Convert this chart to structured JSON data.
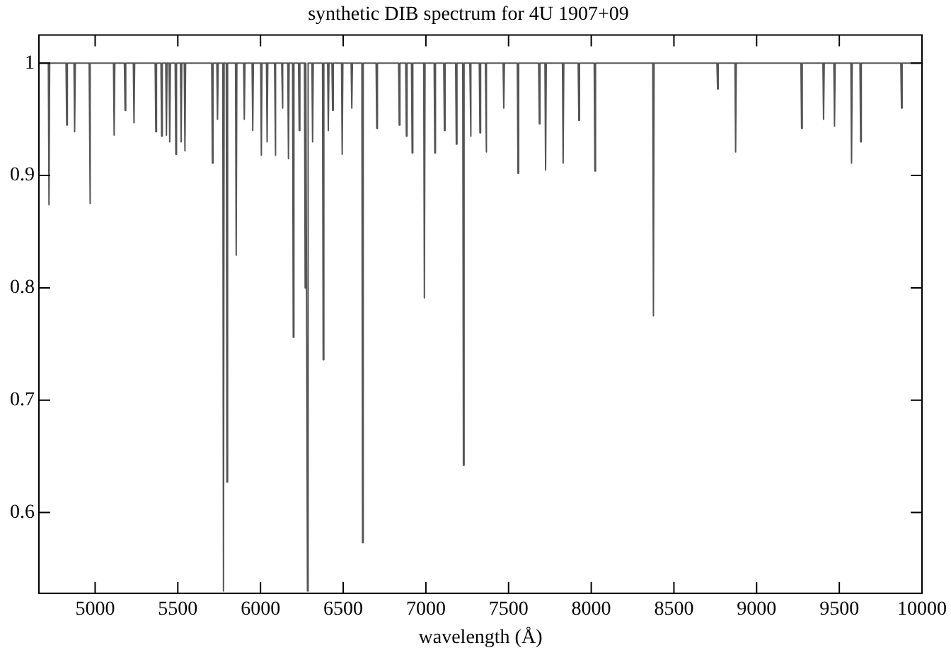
{
  "chart_data": {
    "type": "line",
    "title": "synthetic DIB spectrum for 4U 1907+09",
    "xlabel": "wavelength (Å)",
    "marker": "none",
    "line_style": "solid",
    "xlim": [
      4660,
      10000
    ],
    "xticks": [
      5000,
      5500,
      6000,
      6500,
      7000,
      7500,
      8000,
      8500,
      9000,
      9500,
      10000
    ],
    "ylim": [
      0.528,
      1.025
    ],
    "yticks": [
      0.6,
      0.7,
      0.8,
      0.9,
      1
    ],
    "series": [
      {
        "color": "#555555",
        "x": [
          4660,
          4717,
          4721,
          4725,
          4824,
          4828,
          4832,
          4872,
          4876,
          4880,
          4964,
          4968,
          4972,
          5111,
          5115,
          5119,
          5177,
          5181,
          5185,
          5231,
          5235,
          5239,
          5363,
          5367,
          5371,
          5398,
          5402,
          5406,
          5427,
          5431,
          5435,
          5447,
          5451,
          5455,
          5484,
          5488,
          5492,
          5516,
          5520,
          5524,
          5539,
          5543,
          5547,
          5705,
          5709,
          5713,
          5736,
          5740,
          5744,
          5772,
          5776,
          5780,
          5793,
          5797,
          5801,
          5849,
          5853,
          5857,
          5898,
          5902,
          5906,
          5949,
          5953,
          5957,
          6001,
          6005,
          6009,
          6036,
          6040,
          6044,
          6085,
          6089,
          6093,
          6128,
          6132,
          6136,
          6165,
          6169,
          6173,
          6194,
          6198,
          6202,
          6230,
          6234,
          6238,
          6266,
          6270,
          6274,
          6280,
          6284,
          6288,
          6311,
          6315,
          6319,
          6375,
          6379,
          6383,
          6406,
          6410,
          6414,
          6432,
          6436,
          6440,
          6490,
          6494,
          6498,
          6548,
          6552,
          6556,
          6613,
          6617,
          6621,
          6699,
          6703,
          6707,
          6835,
          6839,
          6843,
          6878,
          6882,
          6886,
          6913,
          6917,
          6921,
          6987,
          6991,
          6995,
          7050,
          7054,
          7058,
          7108,
          7112,
          7116,
          7180,
          7184,
          7188,
          7223,
          7227,
          7231,
          7266,
          7270,
          7274,
          7323,
          7327,
          7331,
          7360,
          7364,
          7368,
          7467,
          7471,
          7475,
          7553,
          7557,
          7561,
          7682,
          7686,
          7690,
          7720,
          7724,
          7728,
          7826,
          7830,
          7834,
          7921,
          7925,
          7929,
          8018,
          8022,
          8026,
          8372,
          8376,
          8380,
          8760,
          8764,
          8768,
          8869,
          8873,
          8877,
          9268,
          9272,
          9276,
          9401,
          9405,
          9409,
          9467,
          9471,
          9475,
          9570,
          9574,
          9578,
          9625,
          9629,
          9633,
          9872,
          9876,
          9880,
          10000
        ],
        "values": [
          1,
          1,
          0.874,
          1,
          1,
          0.945,
          1,
          1,
          0.939,
          1,
          1,
          0.875,
          1,
          1,
          0.936,
          1,
          1,
          0.958,
          1,
          1,
          0.947,
          1,
          1,
          0.939,
          1,
          1,
          0.935,
          1,
          1,
          0.936,
          1,
          1,
          0.93,
          1,
          1,
          0.919,
          1,
          1,
          0.93,
          1,
          1,
          0.922,
          1,
          1,
          0.911,
          1,
          1,
          0.95,
          1,
          1,
          0.53,
          1,
          1,
          0.627,
          1,
          1,
          0.829,
          1,
          1,
          0.95,
          1,
          1,
          0.94,
          1,
          1,
          0.918,
          1,
          1,
          0.93,
          1,
          1,
          0.918,
          1,
          1,
          0.96,
          1,
          1,
          0.915,
          1,
          1,
          0.756,
          1,
          1,
          0.94,
          1,
          1,
          0.8,
          1,
          1,
          0.53,
          1,
          1,
          0.93,
          1,
          1,
          0.736,
          1,
          1,
          0.94,
          1,
          1,
          0.958,
          1,
          1,
          0.919,
          1,
          1,
          0.96,
          1,
          1,
          0.573,
          1,
          1,
          0.942,
          1,
          1,
          0.945,
          1,
          1,
          0.935,
          1,
          1,
          0.92,
          1,
          1,
          0.791,
          1,
          1,
          0.92,
          1,
          1,
          0.94,
          1,
          1,
          0.928,
          1,
          1,
          0.642,
          1,
          1,
          0.935,
          1,
          1,
          0.938,
          1,
          1,
          0.921,
          1,
          1,
          0.96,
          1,
          1,
          0.902,
          1,
          1,
          0.946,
          1,
          1,
          0.905,
          1,
          1,
          0.911,
          1,
          1,
          0.949,
          1,
          1,
          0.904,
          1,
          1,
          0.775,
          1,
          1,
          0.977,
          1,
          1,
          0.921,
          1,
          1,
          0.942,
          1,
          1,
          0.95,
          1,
          1,
          0.944,
          1,
          1,
          0.911,
          1,
          1,
          0.93,
          1,
          1,
          0.96,
          1,
          1
        ]
      }
    ]
  }
}
